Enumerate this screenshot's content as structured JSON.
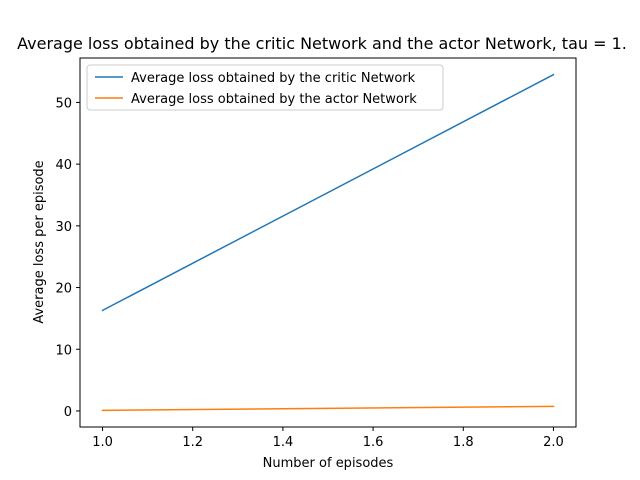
{
  "chart_data": {
    "type": "line",
    "title": "Average loss obtained by the critic Network and the actor Network, tau = 1.",
    "xlabel": "Number of episodes",
    "ylabel": "Average loss per episode",
    "xlim": [
      0.95,
      2.05
    ],
    "ylim": [
      -2.6,
      57.2
    ],
    "xticks": [
      1.0,
      1.2,
      1.4,
      1.6,
      1.8,
      2.0
    ],
    "xtick_labels": [
      "1.0",
      "1.2",
      "1.4",
      "1.6",
      "1.8",
      "2.0"
    ],
    "yticks": [
      0,
      10,
      20,
      30,
      40,
      50
    ],
    "ytick_labels": [
      "0",
      "10",
      "20",
      "30",
      "40",
      "50"
    ],
    "grid": false,
    "legend_position": "top-left",
    "series": [
      {
        "name": "Average loss obtained by the critic Network",
        "color": "#1f77b4",
        "x": [
          1.0,
          2.0
        ],
        "y": [
          16.3,
          54.5
        ]
      },
      {
        "name": "Average loss obtained by the actor Network",
        "color": "#ff7f0e",
        "x": [
          1.0,
          2.0
        ],
        "y": [
          0.1,
          0.75
        ]
      }
    ]
  }
}
